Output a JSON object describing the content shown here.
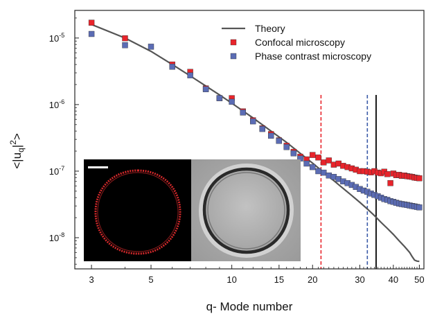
{
  "chart_data": {
    "type": "scatter",
    "xlabel": "q- Mode number",
    "ylabel_parts": {
      "open": "<|u",
      "sub": "q",
      "close": "|",
      "sup": "2",
      "end": ">"
    },
    "xscale": "log",
    "yscale": "log",
    "xlim": [
      2.6,
      52
    ],
    "ylim": [
      3.4e-09,
      2.6e-05
    ],
    "x_ticks": [
      3,
      5,
      10,
      15,
      20,
      30,
      40,
      50
    ],
    "x_tick_labels": [
      "3",
      "5",
      "10",
      "15",
      "20",
      "30",
      "40",
      "50"
    ],
    "y_ticks": [
      1e-08,
      1e-07,
      1e-06,
      1e-05
    ],
    "y_tick_labels": [
      {
        "base": "10",
        "exp": "-8"
      },
      {
        "base": "10",
        "exp": "-7"
      },
      {
        "base": "10",
        "exp": "-6"
      },
      {
        "base": "10",
        "exp": "-5"
      }
    ],
    "legend_position": "top-right",
    "series": [
      {
        "name": "Theory",
        "kind": "line",
        "color": "#555555",
        "x": [
          3,
          4,
          5,
          6,
          7,
          8,
          9,
          10,
          12,
          14,
          16,
          18,
          20,
          22,
          24,
          26,
          28,
          30,
          32,
          34,
          36,
          38,
          40,
          42,
          44,
          46,
          47,
          48,
          49,
          50
        ],
        "y": [
          1.6e-05,
          1e-05,
          6.3e-06,
          4e-06,
          2.7e-06,
          1.9e-06,
          1.4e-06,
          1.05e-06,
          6.3e-07,
          4e-07,
          2.7e-07,
          1.85e-07,
          1.32e-07,
          9.6e-08,
          7.2e-08,
          5.5e-08,
          4.3e-08,
          3.4e-08,
          2.7e-08,
          2.15e-08,
          1.7e-08,
          1.38e-08,
          1.12e-08,
          9e-09,
          7.4e-09,
          6e-09,
          5.2e-09,
          4.6e-09,
          4.45e-09,
          4.4e-09
        ]
      },
      {
        "name": "Confocal microscopy",
        "kind": "marker",
        "color": "#e8242b",
        "x": [
          3,
          4,
          6,
          7,
          8,
          9,
          10,
          11,
          12,
          13,
          14,
          15,
          16,
          17,
          18,
          19,
          20,
          21,
          22,
          23,
          24,
          25,
          26,
          27,
          28,
          29,
          30,
          31,
          32,
          33,
          34,
          35,
          36,
          37,
          38,
          39,
          40,
          41,
          42,
          43,
          44,
          45,
          46,
          47,
          48,
          49,
          50
        ],
        "y": [
          1.7e-05,
          9.9e-06,
          4e-06,
          3.1e-06,
          1.75e-06,
          1.25e-06,
          1.25e-06,
          7.9e-07,
          5.8e-07,
          4.4e-07,
          3.6e-07,
          2.9e-07,
          2.4e-07,
          1.95e-07,
          1.65e-07,
          1.5e-07,
          1.75e-07,
          1.6e-07,
          1.35e-07,
          1.45e-07,
          1.25e-07,
          1.3e-07,
          1.2e-07,
          1.15e-07,
          1.1e-07,
          1.05e-07,
          1e-07,
          1e-07,
          9.8e-08,
          9.6e-08,
          1e-07,
          9.5e-08,
          9.3e-08,
          9.8e-08,
          9e-08,
          6.6e-08,
          9.2e-08,
          8.7e-08,
          8.8e-08,
          8.5e-08,
          8.6e-08,
          8.4e-08,
          8.3e-08,
          8.2e-08,
          8e-08,
          7.9e-08,
          7.8e-08
        ]
      },
      {
        "name": "Phase contrast microscopy",
        "kind": "marker",
        "color": "#5b6cb4",
        "x": [
          3,
          4,
          5,
          6,
          7,
          8,
          9,
          10,
          11,
          12,
          13,
          14,
          15,
          16,
          17,
          18,
          19,
          20,
          21,
          22,
          23,
          24,
          25,
          26,
          27,
          28,
          29,
          30,
          31,
          32,
          33,
          34,
          35,
          36,
          37,
          38,
          39,
          40,
          41,
          42,
          43,
          44,
          45,
          46,
          47,
          48,
          49,
          50
        ],
        "y": [
          1.15e-05,
          7.8e-06,
          7.4e-06,
          3.7e-06,
          2.75e-06,
          1.7e-06,
          1.25e-06,
          1.1e-06,
          7.6e-07,
          5.6e-07,
          4.3e-07,
          3.4e-07,
          2.85e-07,
          2.3e-07,
          1.85e-07,
          1.55e-07,
          1.3e-07,
          1.15e-07,
          1e-07,
          9.5e-08,
          8.6e-08,
          8.2e-08,
          7.6e-08,
          7e-08,
          6.6e-08,
          6.2e-08,
          5.8e-08,
          5.4e-08,
          5.1e-08,
          4.9e-08,
          4.6e-08,
          4.4e-08,
          4.2e-08,
          4e-08,
          3.8e-08,
          3.7e-08,
          3.55e-08,
          3.45e-08,
          3.35e-08,
          3.25e-08,
          3.2e-08,
          3.15e-08,
          3.1e-08,
          3.05e-08,
          3e-08,
          2.95e-08,
          2.9e-08,
          2.85e-08
        ]
      }
    ],
    "vertical_lines": [
      {
        "x": 21.5,
        "color": "#e8242b",
        "style": "dashed"
      },
      {
        "x": 32,
        "color": "#3a5aa8",
        "style": "dashed"
      },
      {
        "x": 34.5,
        "color": "#000000",
        "style": "solid"
      }
    ],
    "inset": {
      "panels": [
        "confocal-image",
        "phase-contrast-image"
      ],
      "confocal_ring_color": "#d0282a",
      "scale_bar_color": "#ffffff"
    }
  }
}
